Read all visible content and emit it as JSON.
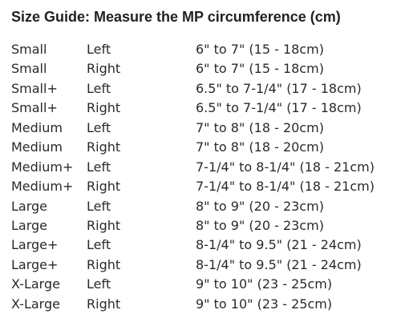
{
  "title": "Size Guide: Measure the MP circumference (cm)",
  "rows": [
    {
      "size": "Small",
      "hand": "Left",
      "range": "6\" to 7\" (15 - 18cm)"
    },
    {
      "size": "Small",
      "hand": "Right",
      "range": "6\" to 7\" (15 - 18cm)"
    },
    {
      "size": "Small+",
      "hand": "Left",
      "range": "6.5\" to 7-1/4\" (17 - 18cm)"
    },
    {
      "size": "Small+",
      "hand": "Right",
      "range": "6.5\" to 7-1/4\" (17 - 18cm)"
    },
    {
      "size": "Medium",
      "hand": "Left",
      "range": "7\" to 8\" (18 - 20cm)"
    },
    {
      "size": "Medium",
      "hand": "Right",
      "range": "7\" to 8\" (18 - 20cm)"
    },
    {
      "size": "Medium+",
      "hand": "Left",
      "range": "7-1/4\" to 8-1/4\" (18 - 21cm)"
    },
    {
      "size": "Medium+",
      "hand": "Right",
      "range": "7-1/4\" to 8-1/4\" (18 - 21cm)"
    },
    {
      "size": "Large",
      "hand": "Left",
      "range": "8\" to 9\" (20 - 23cm)"
    },
    {
      "size": "Large",
      "hand": "Right",
      "range": "8\" to 9\" (20 - 23cm)"
    },
    {
      "size": "Large+",
      "hand": "Left",
      "range": "8-1/4\" to 9.5\" (21 - 24cm)"
    },
    {
      "size": "Large+",
      "hand": "Right",
      "range": "8-1/4\" to 9.5\" (21 - 24cm)"
    },
    {
      "size": "X-Large",
      "hand": "Left",
      "range": "9\" to 10\" (23 - 25cm)"
    },
    {
      "size": "X-Large",
      "hand": "Right",
      "range": "9\" to 10\" (23 - 25cm)"
    }
  ]
}
